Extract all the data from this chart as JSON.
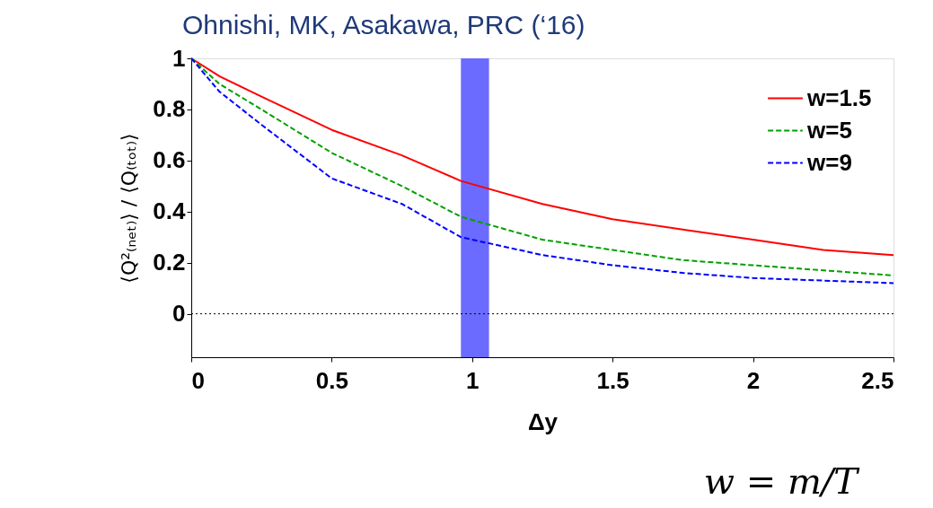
{
  "chart_data": {
    "type": "line",
    "title": "Ohnishi, MK, Asakawa, PRC (‘16)",
    "xlabel": "Δy",
    "ylabel": "⟨Q²₍ₙₑₜ₎⟩ / ⟨Q₍ₜₒₜ₎⟩",
    "x": [
      0,
      0.1,
      0.25,
      0.5,
      0.75,
      0.96,
      1.25,
      1.5,
      1.75,
      2,
      2.25,
      2.5
    ],
    "series": [
      {
        "name": "w=1.5",
        "color": "#ff0000",
        "line_style": "solid",
        "values": [
          1,
          0.93,
          0.85,
          0.72,
          0.62,
          0.52,
          0.43,
          0.37,
          0.33,
          0.29,
          0.25,
          0.23
        ]
      },
      {
        "name": "w=5",
        "color": "#00a000",
        "line_style": "dashed",
        "values": [
          1,
          0.9,
          0.8,
          0.63,
          0.5,
          0.38,
          0.29,
          0.25,
          0.21,
          0.19,
          0.17,
          0.15
        ]
      },
      {
        "name": "w=9",
        "color": "#0000ff",
        "line_style": "dashed",
        "values": [
          1,
          0.87,
          0.74,
          0.53,
          0.43,
          0.3,
          0.23,
          0.19,
          0.16,
          0.14,
          0.13,
          0.12
        ]
      }
    ],
    "xlim": [
      0,
      2.5
    ],
    "xticks": [
      0,
      0.5,
      1,
      1.5,
      2,
      2.5
    ],
    "ylim": [
      -0.17,
      1
    ],
    "yticks": [
      0,
      0.2,
      0.4,
      0.6,
      0.8,
      1
    ],
    "ref_lines": [
      {
        "axis": "y",
        "value": 0,
        "color": "#000000",
        "line_style": "dotted"
      }
    ],
    "bands": [
      {
        "axis": "x",
        "from": 0.96,
        "to": 1.06,
        "color": "#6b6bff"
      }
    ],
    "annotations": [
      "w = m/T"
    ],
    "legend": "top right",
    "grid": false,
    "marker": "none"
  }
}
